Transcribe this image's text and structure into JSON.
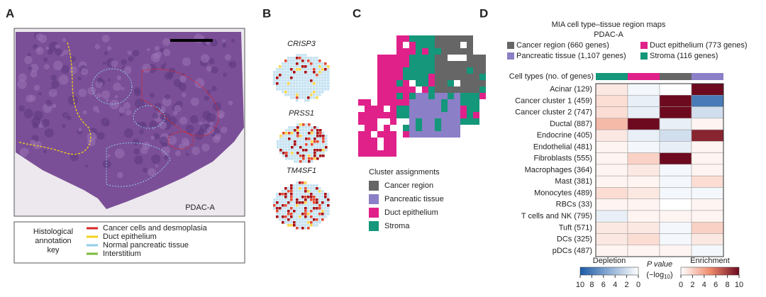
{
  "panels": {
    "a": "A",
    "b": "B",
    "c": "C",
    "d": "D"
  },
  "panel_a": {
    "sample": "PDAC-A",
    "key_title": [
      "Histological",
      "annotation",
      "key"
    ],
    "entries": [
      {
        "label": "Cancer cells and desmoplasia",
        "color": "#d62728"
      },
      {
        "label": "Duct epithelium",
        "color": "#f2d21a"
      },
      {
        "label": "Normal pancreatic tissue",
        "color": "#8ecfe8"
      },
      {
        "label": "Interstitium",
        "color": "#7cbb3a"
      }
    ]
  },
  "panel_b": {
    "genes": [
      "CRISP3",
      "PRSS1",
      "TM4SF1"
    ]
  },
  "panel_c": {
    "legend_title": "Cluster assignments",
    "clusters": [
      {
        "label": "Cancer region",
        "color": "#666666"
      },
      {
        "label": "Pancreatic tissue",
        "color": "#8b7fc7"
      },
      {
        "label": "Duct epithelium",
        "color": "#e0218a"
      },
      {
        "label": "Stroma",
        "color": "#14977a"
      }
    ]
  },
  "chart_data": {
    "type": "heatmap",
    "title": "MIA cell type–tissue region maps",
    "subtitle": "PDAC-A",
    "legend": [
      {
        "name": "Cancer region (660 genes)",
        "color": "#666666"
      },
      {
        "name": "Duct epithelium (773 genes)",
        "color": "#e0218a"
      },
      {
        "name": "Pancreatic tissue (1,107 genes)",
        "color": "#8b7fc7"
      },
      {
        "name": "Stroma (116 genes)",
        "color": "#14977a"
      }
    ],
    "row_header": "Cell types (no. of genes)",
    "column_colors": [
      "#14977a",
      "#e0218a",
      "#666666",
      "#8b7fc7"
    ],
    "rows": [
      "Acinar (129)",
      "Cancer cluster 1 (459)",
      "Cancer cluster 2 (747)",
      "Ductal (887)",
      "Endocrine (405)",
      "Endothelial (481)",
      "Fibroblasts (555)",
      "Macrophages (364)",
      "Mast (381)",
      "Monocytes (489)",
      "RBCs (33)",
      "T cells and NK (795)",
      "Tuft (571)",
      "DCs (325)",
      "pDCs (487)"
    ],
    "values": [
      [
        1,
        -0.5,
        0,
        10
      ],
      [
        1.5,
        -1,
        10,
        -8
      ],
      [
        1.5,
        -1,
        10,
        -2
      ],
      [
        3,
        10,
        -1,
        0.5
      ],
      [
        1,
        -1,
        -2,
        9
      ],
      [
        0.5,
        -0.5,
        -1,
        0.5
      ],
      [
        0.5,
        2,
        10,
        0.5
      ],
      [
        0.5,
        1,
        -0.5,
        0.5
      ],
      [
        0.5,
        0.5,
        -0.5,
        1.5
      ],
      [
        1.5,
        1,
        -0.5,
        -0.5
      ],
      [
        0.5,
        0.5,
        0,
        0.5
      ],
      [
        -1,
        0.5,
        0.5,
        0.5
      ],
      [
        1,
        1,
        -0.5,
        2
      ],
      [
        1,
        1.5,
        -0.5,
        1
      ],
      [
        0.5,
        0.5,
        0.5,
        -0.5
      ]
    ],
    "colors": {
      "low": "#1a5aa6",
      "mid": "#ffffff",
      "high": "#6d0a1f"
    },
    "depletion": {
      "label": "Depletion",
      "lim": [
        -10,
        0
      ],
      "ticks": [
        {
          "value": -10,
          "label": "10"
        },
        {
          "value": -8,
          "label": "8"
        },
        {
          "value": -6,
          "label": "6"
        },
        {
          "value": -4,
          "label": "4"
        },
        {
          "value": -2,
          "label": "2"
        },
        0
      ]
    },
    "enrichment": {
      "label": "Enrichment",
      "lim": [
        0,
        10
      ],
      "ticks": [
        0,
        2,
        4,
        6,
        8,
        10
      ]
    },
    "colorbar_label": "P value",
    "colorbar_unit": {
      "pre": "(−log",
      "sub": "10",
      "post": ")"
    }
  }
}
